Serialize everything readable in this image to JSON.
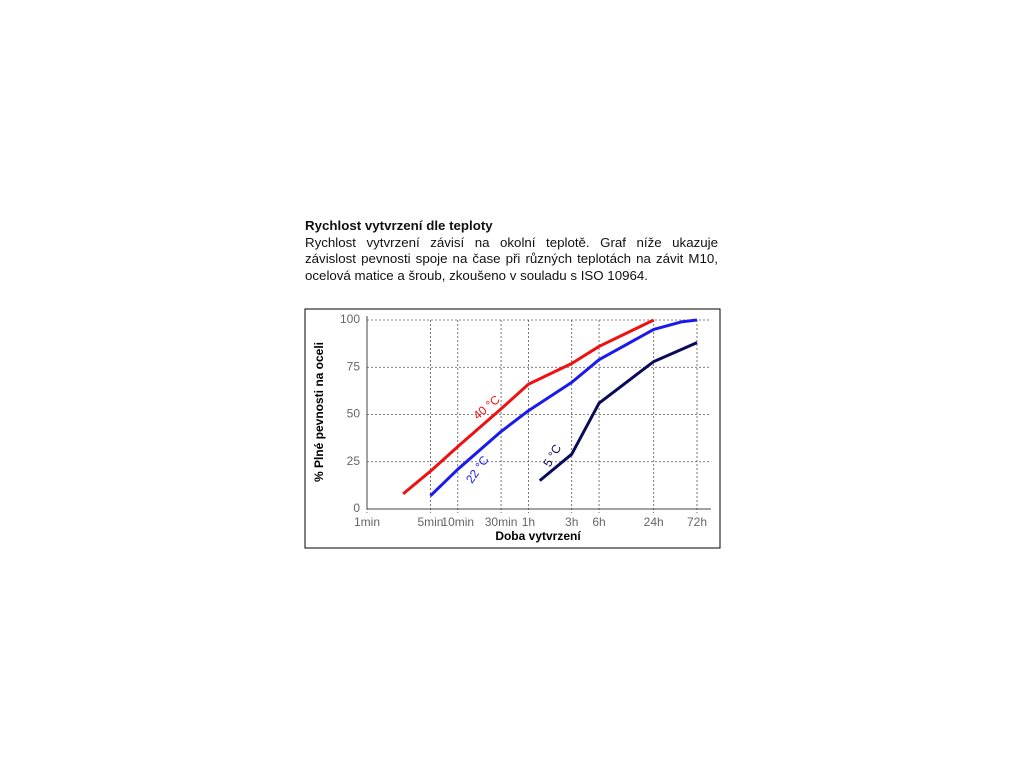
{
  "heading": "Rychlost vytvrzení dle teploty",
  "paragraph": "Rychlost vytvrzení závisí na okolní teplotě. Graf níže ukazuje závislost pevnosti spoje na čase při různých teplotách na závit M10, ocelová matice a šroub, zkoušeno v souladu s ISO 10964.",
  "chart_data": {
    "type": "line",
    "xlabel": "Doba vytvrzení",
    "ylabel": "% Plné pevnosti na oceli",
    "xscale": "log",
    "xlim": [
      1,
      4320
    ],
    "xticks": [
      {
        "value": 1,
        "label": "1min"
      },
      {
        "value": 5,
        "label": "5min"
      },
      {
        "value": 10,
        "label": "10min"
      },
      {
        "value": 30,
        "label": "30min"
      },
      {
        "value": 60,
        "label": "1h"
      },
      {
        "value": 180,
        "label": "3h"
      },
      {
        "value": 360,
        "label": "6h"
      },
      {
        "value": 1440,
        "label": "24h"
      },
      {
        "value": 4320,
        "label": "72h"
      }
    ],
    "ylim": [
      0,
      100
    ],
    "yticks": [
      0,
      25,
      50,
      75,
      100
    ],
    "grid": true,
    "series": [
      {
        "name": "40 °C",
        "color": "#ee1111",
        "x": [
          2.5,
          5,
          10,
          30,
          60,
          180,
          360,
          1440
        ],
        "values": [
          8,
          20,
          33,
          53,
          66,
          77,
          86,
          100
        ]
      },
      {
        "name": "22 °C",
        "color": "#1a1aee",
        "x": [
          5,
          10,
          30,
          60,
          180,
          360,
          1440,
          2900,
          4320
        ],
        "values": [
          7,
          21,
          41,
          52,
          67,
          79,
          95,
          99,
          100
        ]
      },
      {
        "name": "5 °C",
        "color": "#0a0a5a",
        "x": [
          80,
          180,
          360,
          1440,
          4320
        ],
        "values": [
          15,
          29,
          56,
          78,
          88
        ]
      }
    ]
  }
}
